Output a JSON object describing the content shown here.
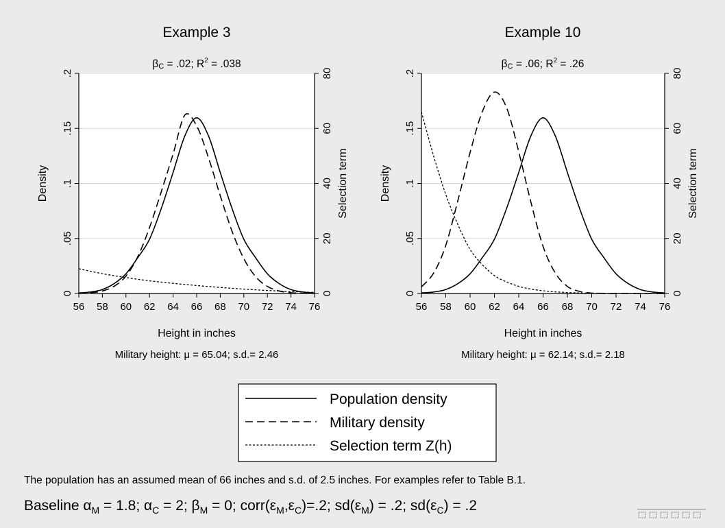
{
  "chart_data": [
    {
      "type": "line",
      "title": "Example 3",
      "subtitle": {
        "beta_sym": "β",
        "beta_sub": "C",
        "beta_text": " = .02;  R",
        "r_sup": "2",
        "r_text": " = .038"
      },
      "xlabel": "Height in inches",
      "ylabel": "Density",
      "ylabel_right": "Selection term",
      "xlim": [
        56,
        76
      ],
      "ylim": [
        0,
        0.2
      ],
      "ylim_right": [
        0,
        80
      ],
      "xticks": [
        "56",
        "58",
        "60",
        "62",
        "64",
        "66",
        "68",
        "70",
        "72",
        "74",
        "76"
      ],
      "yticks": [
        "0",
        ".05",
        ".1",
        ".15",
        ".2"
      ],
      "yticks_right": [
        "0",
        "20",
        "40",
        "60",
        "80"
      ],
      "grid": true,
      "caption": {
        "prefix": "Military height: ",
        "mu_sym": "μ",
        "text": " =  65.04; s.d.= 2.46"
      },
      "series": [
        {
          "name": "Population density",
          "style": "solid",
          "axis": "left",
          "x": [
            56,
            57,
            58,
            59,
            60,
            61,
            62,
            63,
            64,
            65,
            66,
            67,
            68,
            69,
            70,
            71,
            72,
            73,
            74,
            75,
            76
          ],
          "y": [
            0.0005,
            0.0014,
            0.0036,
            0.009,
            0.0179,
            0.0325,
            0.0493,
            0.0773,
            0.11,
            0.1433,
            0.1596,
            0.1433,
            0.11,
            0.0773,
            0.0493,
            0.0325,
            0.0179,
            0.009,
            0.0036,
            0.0014,
            0.0005
          ]
        },
        {
          "name": "Military density",
          "style": "dashed",
          "axis": "left",
          "x": [
            56,
            57,
            58,
            59,
            60,
            61,
            62,
            63,
            64,
            65,
            66,
            67,
            68,
            69,
            70,
            71,
            72,
            73,
            74,
            75,
            76
          ],
          "y": [
            0.0002,
            0.0007,
            0.0023,
            0.0066,
            0.0158,
            0.0334,
            0.0599,
            0.0926,
            0.1267,
            0.1621,
            0.1523,
            0.1235,
            0.0889,
            0.0566,
            0.0317,
            0.0153,
            0.0064,
            0.0023,
            0.0007,
            0.0002,
            0.0001
          ]
        },
        {
          "name": "Selection term Z(h)",
          "style": "dotted",
          "axis": "right",
          "x": [
            56,
            58,
            60,
            62,
            64,
            66,
            68,
            70,
            72,
            74,
            76
          ],
          "y": [
            9.0,
            7.2,
            5.8,
            4.6,
            3.7,
            2.9,
            2.2,
            1.6,
            1.1,
            0.7,
            0.4
          ]
        }
      ]
    },
    {
      "type": "line",
      "title": "Example 10",
      "subtitle": {
        "beta_sym": "β",
        "beta_sub": "C",
        "beta_text": " = .06; R",
        "r_sup": "2",
        "r_text": " = .26"
      },
      "xlabel": "Height in inches",
      "ylabel": "Density",
      "ylabel_right": "Selection term",
      "xlim": [
        56,
        76
      ],
      "ylim": [
        0,
        0.2
      ],
      "ylim_right": [
        0,
        80
      ],
      "xticks": [
        "56",
        "58",
        "60",
        "62",
        "64",
        "66",
        "68",
        "70",
        "72",
        "74",
        "76"
      ],
      "yticks": [
        "0",
        ".05",
        ".1",
        ".15",
        ".2"
      ],
      "yticks_right": [
        "0",
        "20",
        "40",
        "60",
        "80"
      ],
      "grid": true,
      "caption": {
        "prefix": "Military height: ",
        "mu_sym": "μ",
        "text": " =  62.14; s.d.= 2.18"
      },
      "series": [
        {
          "name": "Population density",
          "style": "solid",
          "axis": "left",
          "x": [
            56,
            57,
            58,
            59,
            60,
            61,
            62,
            63,
            64,
            65,
            66,
            67,
            68,
            69,
            70,
            71,
            72,
            73,
            74,
            75,
            76
          ],
          "y": [
            0.0005,
            0.0014,
            0.0036,
            0.009,
            0.0179,
            0.0325,
            0.0493,
            0.0773,
            0.11,
            0.1433,
            0.1596,
            0.1433,
            0.11,
            0.0773,
            0.0493,
            0.0325,
            0.0179,
            0.009,
            0.0036,
            0.0014,
            0.0005
          ]
        },
        {
          "name": "Military density",
          "style": "dashed",
          "axis": "left",
          "x": [
            56,
            57,
            58,
            59,
            60,
            61,
            62,
            63,
            64,
            65,
            66,
            67,
            68,
            69,
            70,
            71,
            72,
            73,
            74,
            75,
            76
          ],
          "y": [
            0.006,
            0.0185,
            0.0436,
            0.0847,
            0.1281,
            0.1651,
            0.183,
            0.1688,
            0.1287,
            0.0829,
            0.0428,
            0.0187,
            0.0064,
            0.0019,
            0.0004,
            0.0001,
            0,
            0,
            0,
            0,
            0
          ]
        },
        {
          "name": "Selection term Z(h)",
          "style": "dotted",
          "axis": "right",
          "x": [
            56,
            57,
            58,
            59,
            60,
            61,
            62,
            63,
            64,
            65,
            66,
            67,
            68,
            69,
            70,
            72,
            74,
            76
          ],
          "y": [
            66,
            50,
            36,
            25,
            16,
            10.5,
            6.5,
            4.2,
            2.6,
            1.6,
            1.0,
            0.6,
            0.35,
            0.2,
            0.1,
            0.03,
            0.01,
            0
          ]
        }
      ]
    }
  ],
  "legend": {
    "items": [
      {
        "label": "Population density",
        "style": "solid"
      },
      {
        "label": "Military density",
        "style": "dashed"
      },
      {
        "label": "Selection term Z(h)",
        "style": "dotted"
      }
    ]
  },
  "notes": {
    "line1": "The population has an assumed mean of 66 inches and s.d. of 2.5 inches. For examples refer to Table B.1.",
    "line2": {
      "s1": "Baseline ",
      "alpha": "α",
      "sub_m": "M",
      "s2": " = 1.8; ",
      "sub_c": "C",
      "s3": " = 2; ",
      "beta": "β",
      "s4": " = 0;  corr(",
      "eps": "ε",
      "s5": "=.2; sd(",
      "s6": ") = .2; sd(",
      "s7": ") = .2"
    }
  },
  "colors": {
    "background": "#ebebeb",
    "plot_bg": "#ffffff",
    "grid": "#dcdcdc",
    "ink": "#000000"
  }
}
